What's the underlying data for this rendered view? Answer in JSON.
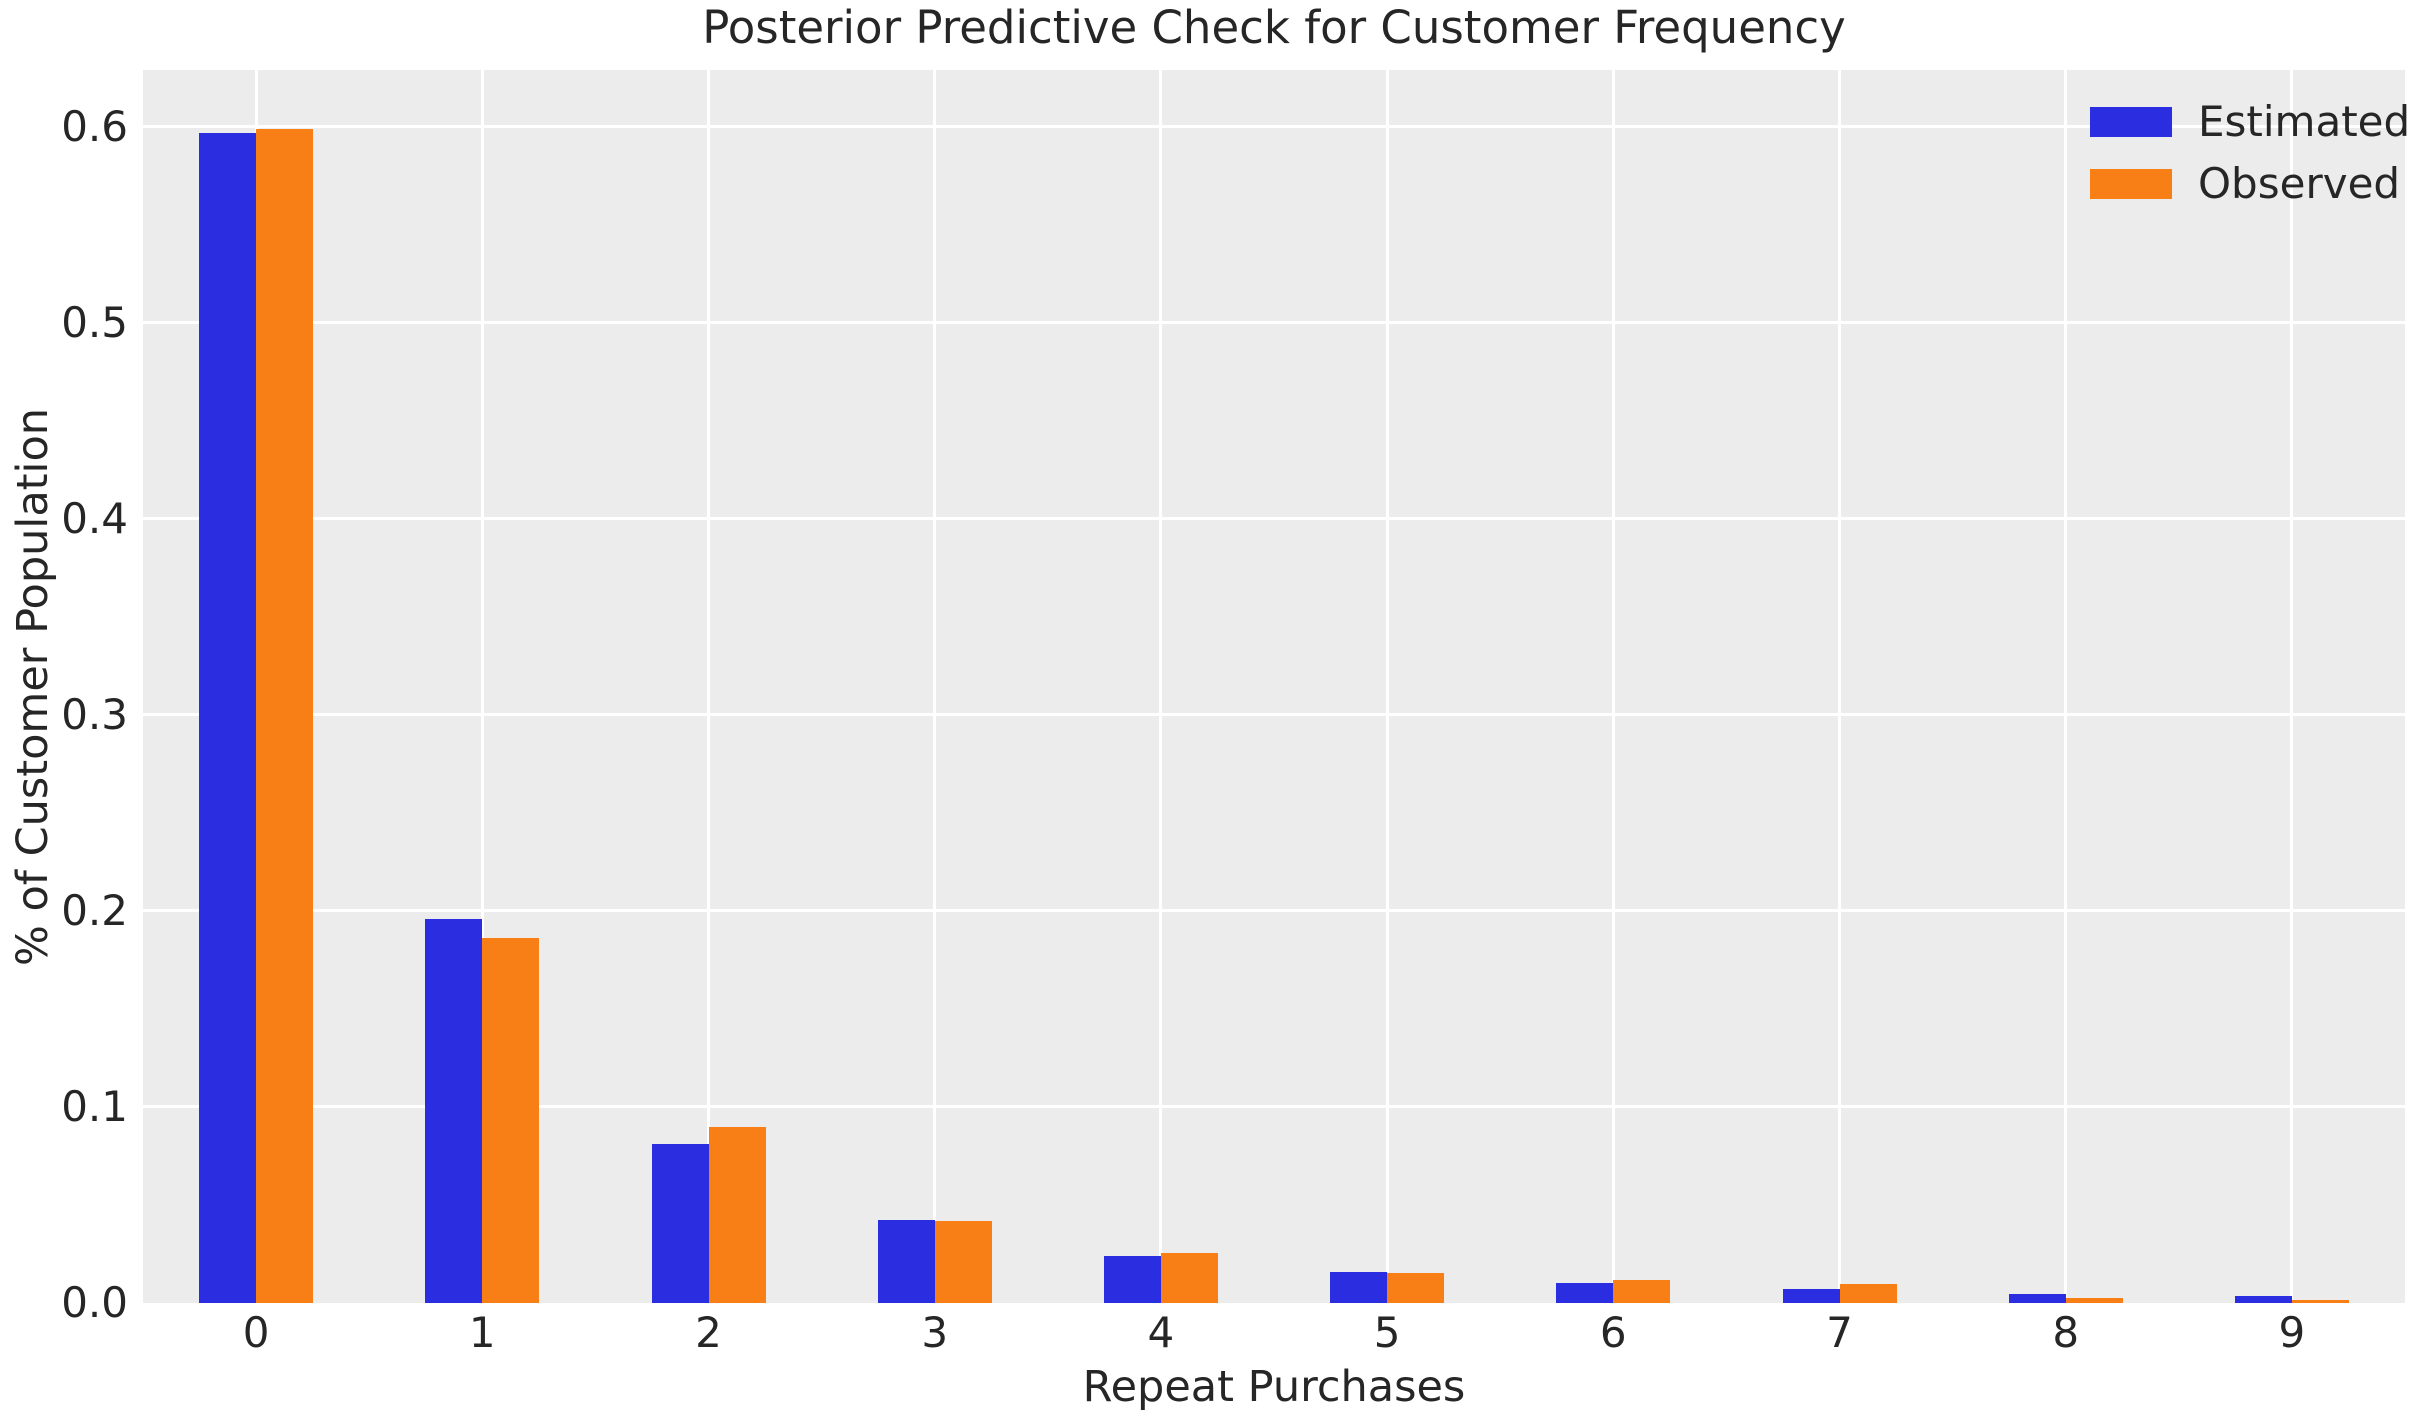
{
  "chart_data": {
    "type": "bar",
    "title": "Posterior Predictive Check for Customer Frequency",
    "xlabel": "Repeat Purchases",
    "ylabel": "% of Customer Population",
    "categories": [
      "0",
      "1",
      "2",
      "3",
      "4",
      "5",
      "6",
      "7",
      "8",
      "9"
    ],
    "series": [
      {
        "name": "Estimated",
        "color": "#2a2de0",
        "values": [
          0.597,
          0.196,
          0.081,
          0.0425,
          0.024,
          0.016,
          0.0103,
          0.0071,
          0.0046,
          0.0036
        ]
      },
      {
        "name": "Observed",
        "color": "#f87f16",
        "values": [
          0.599,
          0.186,
          0.09,
          0.042,
          0.0255,
          0.0153,
          0.0117,
          0.0097,
          0.0026,
          0.0015
        ]
      }
    ],
    "ylim": [
      0,
      0.629
    ],
    "yticks": [
      0.0,
      0.1,
      0.2,
      0.3,
      0.4,
      0.5,
      0.6
    ],
    "ytick_labels": [
      "0.0",
      "0.1",
      "0.2",
      "0.3",
      "0.4",
      "0.5",
      "0.6"
    ],
    "grid": true,
    "grid_color": "#ffffff",
    "plot_bg_color": "#ececec",
    "figure_bg_color": "#ffffff",
    "text_color": "#262626",
    "legend_position": "upper right",
    "legend_entries": [
      "Estimated",
      "Observed"
    ]
  }
}
